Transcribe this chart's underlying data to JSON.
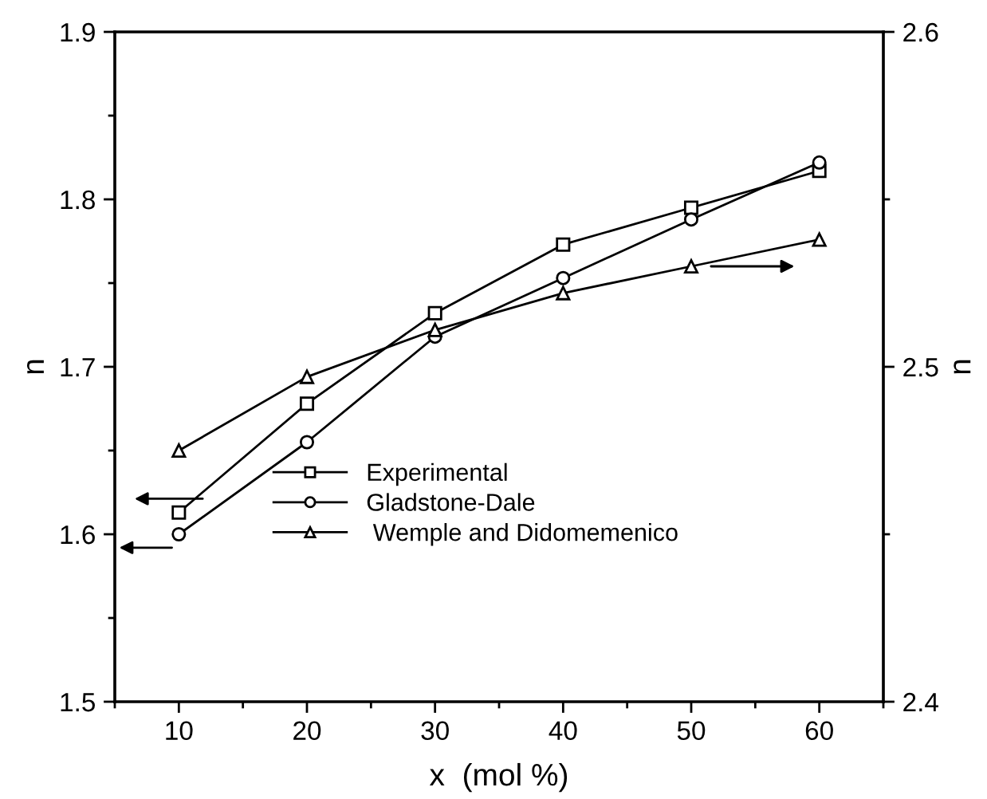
{
  "chart_data": {
    "type": "line",
    "xlabel": "x  (mol %)",
    "ylabel": "n",
    "y2label": "n",
    "x": [
      10,
      20,
      30,
      40,
      50,
      60
    ],
    "series": [
      {
        "name": "Experimental",
        "color": "#000000",
        "marker": "square",
        "values": [
          1.613,
          1.678,
          1.732,
          1.773,
          1.795,
          1.817
        ]
      },
      {
        "name": "Gladstone-Dale",
        "color": "#000000",
        "marker": "circle",
        "values": [
          1.6,
          1.655,
          1.718,
          1.753,
          1.788,
          1.822
        ]
      },
      {
        "name": " Wemple and Didomemenico",
        "color": "#000000",
        "marker": "triangle",
        "axis": "y2",
        "values": [
          2.475,
          2.497,
          2.511,
          2.522,
          2.53,
          2.538
        ]
      }
    ],
    "xlim": [
      5,
      65
    ],
    "xticks": [
      10,
      20,
      30,
      40,
      50,
      60
    ],
    "ylim": [
      1.5,
      1.9
    ],
    "yticks": [
      1.5,
      1.6,
      1.7,
      1.8,
      1.9
    ],
    "y2lim": [
      2.4,
      2.6
    ],
    "y2ticks": [
      2.4,
      2.5,
      2.6
    ],
    "grid": false,
    "legend": "bottom",
    "line_style": "solid"
  }
}
